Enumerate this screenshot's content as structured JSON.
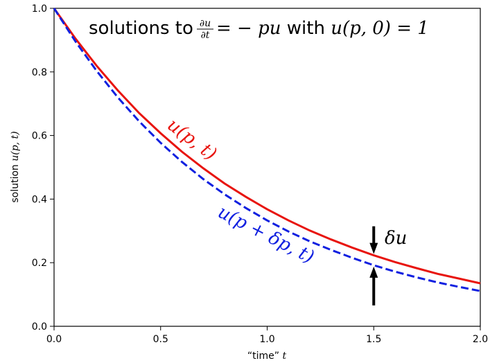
{
  "chart_data": {
    "type": "line",
    "title": {
      "prefix": "solutions to ",
      "frac_num": "∂u",
      "frac_den": "∂t",
      "equation": " = − pu",
      "mid": " with ",
      "condition": "u(p, 0) = 1"
    },
    "xlabel": {
      "text": "“time” ",
      "var": "t"
    },
    "ylabel": {
      "text": "solution ",
      "var": "u(p, t)"
    },
    "xlim": [
      0.0,
      2.0
    ],
    "ylim": [
      0.0,
      1.0
    ],
    "xticks": [
      0.0,
      0.5,
      1.0,
      1.5,
      2.0
    ],
    "yticks": [
      0.0,
      0.2,
      0.4,
      0.6,
      0.8,
      1.0
    ],
    "xtick_labels": [
      "0.0",
      "0.5",
      "1.0",
      "1.5",
      "2.0"
    ],
    "ytick_labels": [
      "0.0",
      "0.2",
      "0.4",
      "0.6",
      "0.8",
      "1.0"
    ],
    "grid": false,
    "series": [
      {
        "name": "u(p, t)",
        "color": "#e8140e",
        "style": "solid",
        "x": [
          0.0,
          0.1,
          0.2,
          0.3,
          0.4,
          0.5,
          0.6,
          0.7,
          0.8,
          0.9,
          1.0,
          1.1,
          1.2,
          1.3,
          1.4,
          1.5,
          1.6,
          1.7,
          1.8,
          1.9,
          2.0
        ],
        "y": [
          1.0,
          0.905,
          0.819,
          0.741,
          0.67,
          0.607,
          0.549,
          0.497,
          0.449,
          0.407,
          0.368,
          0.333,
          0.301,
          0.273,
          0.247,
          0.223,
          0.202,
          0.183,
          0.165,
          0.15,
          0.135
        ]
      },
      {
        "name": "u(p + δp, t)",
        "color": "#1020e0",
        "style": "dashed",
        "x": [
          0.0,
          0.1,
          0.2,
          0.3,
          0.4,
          0.5,
          0.6,
          0.7,
          0.8,
          0.9,
          1.0,
          1.1,
          1.2,
          1.3,
          1.4,
          1.5,
          1.6,
          1.7,
          1.8,
          1.9,
          2.0
        ],
        "y": [
          1.0,
          0.896,
          0.803,
          0.719,
          0.644,
          0.577,
          0.517,
          0.463,
          0.415,
          0.372,
          0.333,
          0.298,
          0.267,
          0.24,
          0.215,
          0.192,
          0.172,
          0.154,
          0.138,
          0.124,
          0.111
        ]
      }
    ],
    "annotations": {
      "delta_label": "δu",
      "delta_x": 1.5,
      "arrow_color": "#000000"
    }
  }
}
